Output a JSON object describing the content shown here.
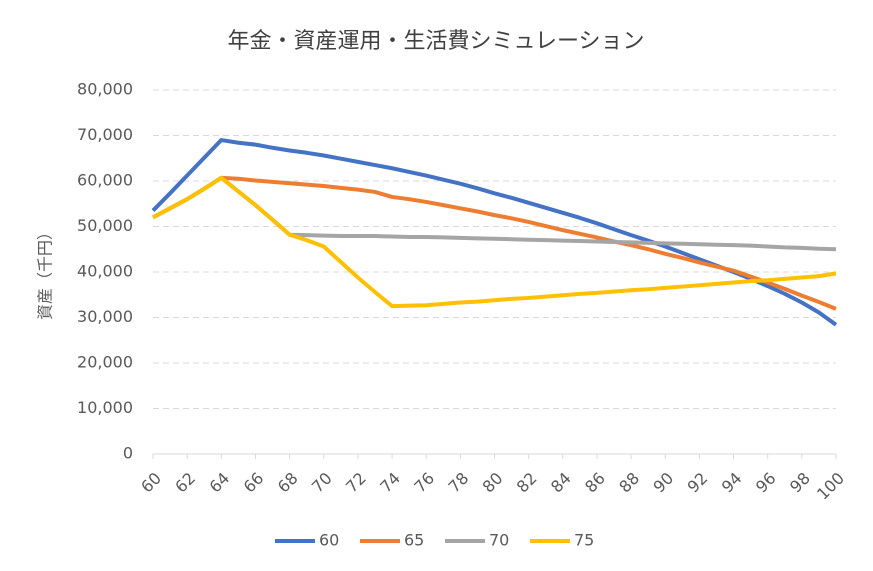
{
  "chart_data": {
    "type": "line",
    "title": "年金・資産運用・生活費シミュレーション",
    "y_label": "資産（千円）",
    "x": [
      60,
      61,
      62,
      63,
      64,
      65,
      66,
      67,
      68,
      69,
      70,
      71,
      72,
      73,
      74,
      75,
      76,
      77,
      78,
      79,
      80,
      81,
      82,
      83,
      84,
      85,
      86,
      87,
      88,
      89,
      90,
      91,
      92,
      93,
      94,
      95,
      96,
      97,
      98,
      99,
      100
    ],
    "xlim": [
      60,
      100
    ],
    "xticks": [
      60,
      62,
      64,
      66,
      68,
      70,
      72,
      74,
      76,
      78,
      80,
      82,
      84,
      86,
      88,
      90,
      92,
      94,
      96,
      98,
      100
    ],
    "ylim": [
      0,
      80000
    ],
    "yticks": [
      0,
      {
        "value": 10000,
        "label": "10,000"
      },
      {
        "value": 20000,
        "label": "20,000"
      },
      {
        "value": 30000,
        "label": "30,000"
      },
      {
        "value": 40000,
        "label": "40,000"
      },
      {
        "value": 50000,
        "label": "50,000"
      },
      {
        "value": 60000,
        "label": "60,000"
      },
      {
        "value": 70000,
        "label": "70,000"
      },
      {
        "value": 80000,
        "label": "80,000"
      }
    ],
    "grid": true,
    "legend": "bottom",
    "series": [
      {
        "name": "60",
        "color": "#4472c4",
        "values": [
          53500,
          57300,
          61200,
          65100,
          69000,
          68400,
          68000,
          67300,
          66700,
          66200,
          65600,
          64900,
          64200,
          63500,
          62800,
          62000,
          61200,
          60300,
          59400,
          58400,
          57300,
          56300,
          55200,
          54100,
          53000,
          51900,
          50700,
          49400,
          48100,
          46900,
          45600,
          44200,
          42800,
          41400,
          40000,
          38500,
          36900,
          35200,
          33300,
          31100,
          28400
        ]
      },
      {
        "name": "65",
        "color": "#ed7d31",
        "values": [
          52000,
          54000,
          56000,
          58300,
          60700,
          60500,
          60100,
          59800,
          59500,
          59200,
          58900,
          58500,
          58100,
          57600,
          56500,
          56000,
          55400,
          54700,
          54000,
          53300,
          52500,
          51800,
          51000,
          50100,
          49200,
          48400,
          47600,
          46700,
          45900,
          45000,
          44000,
          43100,
          42100,
          41200,
          40300,
          39000,
          37700,
          36300,
          34800,
          33400,
          31900
        ]
      },
      {
        "name": "70",
        "color": "#a5a5a5",
        "values": [
          52000,
          54000,
          56000,
          58300,
          60700,
          57700,
          54700,
          51500,
          48200,
          48100,
          48000,
          47900,
          47900,
          47900,
          47800,
          47700,
          47700,
          47600,
          47500,
          47400,
          47300,
          47200,
          47100,
          47000,
          46900,
          46800,
          46700,
          46600,
          46500,
          46400,
          46300,
          46200,
          46100,
          46000,
          45900,
          45800,
          45600,
          45400,
          45300,
          45100,
          45000
        ]
      },
      {
        "name": "75",
        "color": "#ffc000",
        "values": [
          52000,
          54000,
          56000,
          58300,
          60700,
          57700,
          54700,
          51500,
          48200,
          47000,
          45600,
          42200,
          38800,
          35600,
          32500,
          32600,
          32700,
          33000,
          33300,
          33500,
          33800,
          34100,
          34300,
          34600,
          34900,
          35200,
          35400,
          35700,
          36000,
          36200,
          36500,
          36800,
          37100,
          37400,
          37700,
          38000,
          38200,
          38500,
          38800,
          39100,
          39700
        ]
      }
    ]
  }
}
